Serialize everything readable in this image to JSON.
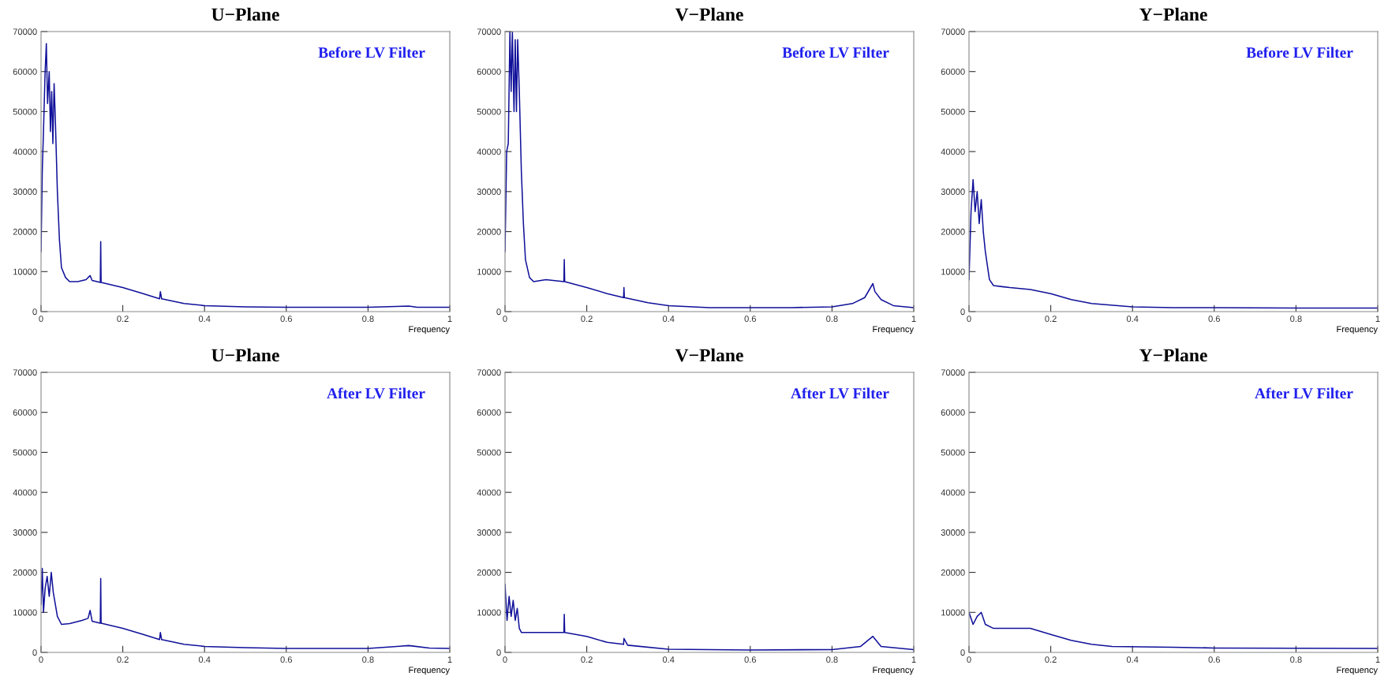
{
  "chart_data": [
    {
      "type": "line",
      "title": "U−Plane",
      "xlabel": "Frequency",
      "annotations": [
        "Before LV Filter"
      ],
      "xlim": [
        0,
        1
      ],
      "ylim": [
        0,
        70000
      ],
      "xticks": [
        0,
        0.2,
        0.4,
        0.6,
        0.8,
        1
      ],
      "yticks": [
        0,
        10000,
        20000,
        30000,
        40000,
        50000,
        60000,
        70000
      ],
      "series": [
        {
          "color": "#10109a",
          "x": [
            0,
            0.003,
            0.006,
            0.01,
            0.013,
            0.016,
            0.02,
            0.023,
            0.026,
            0.029,
            0.032,
            0.035,
            0.04,
            0.045,
            0.05,
            0.06,
            0.07,
            0.09,
            0.11,
            0.12,
            0.125,
            0.145,
            0.146,
            0.147,
            0.2,
            0.25,
            0.29,
            0.292,
            0.295,
            0.35,
            0.4,
            0.5,
            0.6,
            0.8,
            0.9,
            0.92,
            1
          ],
          "values": [
            15000,
            35000,
            45000,
            60000,
            67000,
            52000,
            60000,
            45000,
            55000,
            42000,
            57000,
            48000,
            30000,
            18000,
            11000,
            8500,
            7500,
            7500,
            8000,
            9000,
            7800,
            7300,
            17500,
            7300,
            6000,
            4500,
            3200,
            5000,
            3200,
            2000,
            1500,
            1200,
            1100,
            1100,
            1400,
            1100,
            1100
          ]
        }
      ]
    },
    {
      "type": "line",
      "title": "V−Plane",
      "xlabel": "Frequency",
      "annotations": [
        "Before LV Filter"
      ],
      "xlim": [
        0,
        1
      ],
      "ylim": [
        0,
        70000
      ],
      "xticks": [
        0,
        0.2,
        0.4,
        0.6,
        0.8,
        1
      ],
      "yticks": [
        0,
        10000,
        20000,
        30000,
        40000,
        50000,
        60000,
        70000
      ],
      "series": [
        {
          "color": "#10109a",
          "x": [
            0,
            0.004,
            0.008,
            0.012,
            0.015,
            0.018,
            0.022,
            0.025,
            0.028,
            0.031,
            0.035,
            0.04,
            0.045,
            0.05,
            0.06,
            0.07,
            0.1,
            0.144,
            0.145,
            0.146,
            0.2,
            0.25,
            0.29,
            0.291,
            0.292,
            0.35,
            0.4,
            0.5,
            0.7,
            0.8,
            0.85,
            0.88,
            0.9,
            0.905,
            0.92,
            0.95,
            1
          ],
          "values": [
            15000,
            40000,
            42000,
            70000,
            55000,
            70000,
            50000,
            68000,
            50000,
            68000,
            55000,
            35000,
            22000,
            13000,
            8500,
            7500,
            8000,
            7500,
            13000,
            7500,
            6000,
            4500,
            3500,
            6000,
            3500,
            2200,
            1500,
            1000,
            1000,
            1200,
            2000,
            3500,
            7000,
            5000,
            3000,
            1500,
            1000
          ]
        }
      ]
    },
    {
      "type": "line",
      "title": "Y−Plane",
      "xlabel": "Frequency",
      "annotations": [
        "Before LV Filter"
      ],
      "xlim": [
        0,
        1
      ],
      "ylim": [
        0,
        70000
      ],
      "xticks": [
        0,
        0.2,
        0.4,
        0.6,
        0.8,
        1
      ],
      "yticks": [
        0,
        10000,
        20000,
        30000,
        40000,
        50000,
        60000,
        70000
      ],
      "series": [
        {
          "color": "#10109a",
          "x": [
            0,
            0.005,
            0.01,
            0.015,
            0.02,
            0.025,
            0.03,
            0.035,
            0.04,
            0.05,
            0.06,
            0.1,
            0.15,
            0.2,
            0.25,
            0.3,
            0.4,
            0.5,
            0.6,
            0.8,
            1
          ],
          "values": [
            8000,
            25000,
            33000,
            25000,
            30000,
            22000,
            28000,
            20000,
            15000,
            8000,
            6500,
            6000,
            5500,
            4500,
            3000,
            2000,
            1200,
            1000,
            1000,
            900,
            900
          ]
        }
      ]
    },
    {
      "type": "line",
      "title": "U−Plane",
      "xlabel": "Frequency",
      "annotations": [
        "After LV Filter"
      ],
      "xlim": [
        0,
        1
      ],
      "ylim": [
        0,
        70000
      ],
      "xticks": [
        0,
        0.2,
        0.4,
        0.6,
        0.8,
        1
      ],
      "yticks": [
        0,
        10000,
        20000,
        30000,
        40000,
        50000,
        60000,
        70000
      ],
      "series": [
        {
          "color": "#10109a",
          "x": [
            0,
            0.003,
            0.006,
            0.01,
            0.015,
            0.02,
            0.025,
            0.03,
            0.035,
            0.04,
            0.05,
            0.07,
            0.1,
            0.115,
            0.12,
            0.125,
            0.145,
            0.146,
            0.147,
            0.2,
            0.25,
            0.29,
            0.292,
            0.295,
            0.35,
            0.4,
            0.5,
            0.6,
            0.8,
            0.9,
            0.95,
            1
          ],
          "values": [
            12000,
            21000,
            10000,
            16000,
            19000,
            14000,
            20000,
            15000,
            12000,
            9000,
            7000,
            7200,
            8000,
            8500,
            10500,
            7800,
            7300,
            18500,
            7300,
            6000,
            4500,
            3200,
            5000,
            3200,
            2000,
            1500,
            1200,
            1000,
            1000,
            1700,
            1100,
            1000
          ]
        }
      ]
    },
    {
      "type": "line",
      "title": "V−Plane",
      "xlabel": "Frequency",
      "annotations": [
        "After LV Filter"
      ],
      "xlim": [
        0,
        1
      ],
      "ylim": [
        0,
        70000
      ],
      "xticks": [
        0,
        0.2,
        0.4,
        0.6,
        0.8,
        1
      ],
      "yticks": [
        0,
        10000,
        20000,
        30000,
        40000,
        50000,
        60000,
        70000
      ],
      "series": [
        {
          "color": "#10109a",
          "x": [
            0,
            0.005,
            0.01,
            0.015,
            0.02,
            0.025,
            0.03,
            0.035,
            0.04,
            0.1,
            0.144,
            0.145,
            0.146,
            0.2,
            0.25,
            0.29,
            0.291,
            0.3,
            0.4,
            0.6,
            0.8,
            0.87,
            0.9,
            0.92,
            1
          ],
          "values": [
            17000,
            8000,
            14000,
            9000,
            13000,
            8000,
            11000,
            6000,
            5000,
            5000,
            5000,
            9500,
            5000,
            4000,
            2500,
            2000,
            3500,
            1800,
            800,
            600,
            700,
            1500,
            4000,
            1500,
            700
          ]
        }
      ]
    },
    {
      "type": "line",
      "title": "Y−Plane",
      "xlabel": "Frequency",
      "annotations": [
        "After LV Filter"
      ],
      "xlim": [
        0,
        1
      ],
      "ylim": [
        0,
        70000
      ],
      "xticks": [
        0,
        0.2,
        0.4,
        0.6,
        0.8,
        1
      ],
      "yticks": [
        0,
        10000,
        20000,
        30000,
        40000,
        50000,
        60000,
        70000
      ],
      "series": [
        {
          "color": "#10109a",
          "x": [
            0,
            0.01,
            0.02,
            0.03,
            0.04,
            0.06,
            0.1,
            0.15,
            0.2,
            0.25,
            0.3,
            0.35,
            0.5,
            0.6,
            1
          ],
          "values": [
            10000,
            7000,
            9000,
            10000,
            7000,
            6000,
            6000,
            6000,
            4500,
            3000,
            2000,
            1500,
            1300,
            1100,
            1000
          ]
        }
      ]
    }
  ]
}
